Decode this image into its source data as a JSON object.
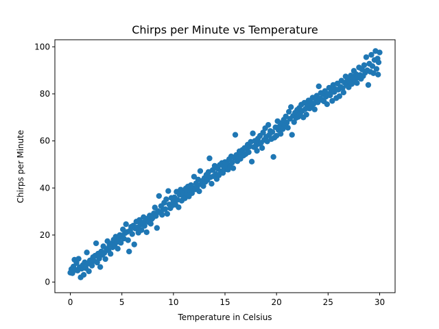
{
  "chart_data": {
    "type": "scatter",
    "title": "Chirps per Minute vs Temperature",
    "xlabel": "Temperature in Celsius",
    "ylabel": "Chirps per Minute",
    "xlim": [
      -1.5,
      31.5
    ],
    "ylim": [
      -4.5,
      103.0
    ],
    "xticks": [
      0,
      5,
      10,
      15,
      20,
      25,
      30
    ],
    "yticks": [
      0,
      20,
      40,
      60,
      80,
      100
    ],
    "grid": false,
    "color": "#1f77b4",
    "series": [
      {
        "points": [
          [
            0.0,
            4.0
          ],
          [
            0.1,
            5.5
          ],
          [
            0.2,
            3.8
          ],
          [
            0.3,
            6.6
          ],
          [
            0.4,
            9.5
          ],
          [
            0.5,
            5.2
          ],
          [
            0.6,
            8.1
          ],
          [
            0.7,
            4.9
          ],
          [
            0.8,
            9.9
          ],
          [
            0.9,
            6.3
          ],
          [
            1.0,
            2.0
          ],
          [
            1.1,
            5.7
          ],
          [
            1.2,
            7.2
          ],
          [
            1.3,
            3.1
          ],
          [
            1.4,
            8.4
          ],
          [
            1.5,
            5.9
          ],
          [
            1.6,
            12.6
          ],
          [
            1.7,
            7.8
          ],
          [
            1.8,
            4.6
          ],
          [
            1.9,
            9.2
          ],
          [
            2.0,
            8.8
          ],
          [
            2.1,
            7.0
          ],
          [
            2.2,
            10.6
          ],
          [
            2.3,
            9.0
          ],
          [
            2.4,
            11.2
          ],
          [
            2.5,
            16.5
          ],
          [
            2.6,
            8.3
          ],
          [
            2.7,
            12.1
          ],
          [
            2.8,
            10.0
          ],
          [
            2.9,
            6.4
          ],
          [
            3.0,
            13.0
          ],
          [
            3.1,
            11.6
          ],
          [
            3.2,
            15.2
          ],
          [
            3.3,
            12.4
          ],
          [
            3.4,
            9.8
          ],
          [
            3.5,
            14.1
          ],
          [
            3.6,
            17.4
          ],
          [
            3.7,
            13.5
          ],
          [
            3.8,
            15.8
          ],
          [
            3.9,
            12.0
          ],
          [
            4.0,
            16.4
          ],
          [
            4.1,
            14.8
          ],
          [
            4.2,
            18.0
          ],
          [
            4.3,
            15.4
          ],
          [
            4.4,
            19.3
          ],
          [
            4.5,
            17.0
          ],
          [
            4.6,
            14.2
          ],
          [
            4.7,
            18.6
          ],
          [
            4.8,
            20.0
          ],
          [
            4.9,
            16.7
          ],
          [
            5.0,
            19.8
          ],
          [
            5.1,
            22.4
          ],
          [
            5.2,
            18.5
          ],
          [
            5.3,
            20.8
          ],
          [
            5.4,
            24.6
          ],
          [
            5.5,
            21.3
          ],
          [
            5.6,
            17.8
          ],
          [
            5.7,
            13.0
          ],
          [
            5.8,
            21.9
          ],
          [
            5.9,
            23.5
          ],
          [
            6.0,
            20.4
          ],
          [
            6.1,
            24.0
          ],
          [
            6.2,
            16.0
          ],
          [
            6.3,
            22.8
          ],
          [
            6.4,
            25.7
          ],
          [
            6.5,
            23.2
          ],
          [
            6.6,
            21.0
          ],
          [
            6.7,
            26.4
          ],
          [
            6.8,
            24.4
          ],
          [
            6.9,
            22.1
          ],
          [
            7.0,
            25.2
          ],
          [
            7.1,
            27.6
          ],
          [
            7.2,
            23.9
          ],
          [
            7.3,
            26.0
          ],
          [
            7.4,
            21.2
          ],
          [
            7.5,
            27.0
          ],
          [
            7.6,
            25.5
          ],
          [
            7.7,
            28.3
          ],
          [
            7.8,
            24.8
          ],
          [
            7.9,
            26.8
          ],
          [
            8.0,
            27.4
          ],
          [
            8.1,
            29.2
          ],
          [
            8.2,
            31.7
          ],
          [
            8.3,
            28.1
          ],
          [
            8.4,
            23.0
          ],
          [
            8.5,
            30.2
          ],
          [
            8.6,
            36.6
          ],
          [
            8.7,
            29.6
          ],
          [
            8.8,
            32.3
          ],
          [
            8.9,
            28.6
          ],
          [
            9.0,
            30.8
          ],
          [
            9.1,
            33.7
          ],
          [
            9.2,
            31.0
          ],
          [
            9.3,
            35.2
          ],
          [
            9.4,
            29.0
          ],
          [
            9.5,
            38.7
          ],
          [
            9.6,
            33.0
          ],
          [
            9.7,
            31.4
          ],
          [
            9.8,
            35.8
          ],
          [
            9.9,
            32.6
          ],
          [
            10.0,
            34.2
          ],
          [
            10.1,
            36.0
          ],
          [
            10.2,
            32.9
          ],
          [
            10.3,
            38.4
          ],
          [
            10.4,
            35.0
          ],
          [
            10.5,
            31.8
          ],
          [
            10.6,
            37.2
          ],
          [
            10.7,
            39.3
          ],
          [
            10.8,
            34.6
          ],
          [
            10.9,
            36.8
          ],
          [
            11.0,
            38.0
          ],
          [
            11.1,
            35.6
          ],
          [
            11.2,
            39.8
          ],
          [
            11.3,
            37.6
          ],
          [
            11.4,
            40.6
          ],
          [
            11.5,
            36.4
          ],
          [
            11.6,
            38.9
          ],
          [
            11.7,
            41.2
          ],
          [
            11.8,
            37.8
          ],
          [
            11.9,
            40.0
          ],
          [
            12.0,
            44.8
          ],
          [
            12.1,
            39.4
          ],
          [
            12.2,
            42.0
          ],
          [
            12.3,
            40.4
          ],
          [
            12.4,
            43.6
          ],
          [
            12.5,
            38.6
          ],
          [
            12.6,
            47.2
          ],
          [
            12.7,
            41.6
          ],
          [
            12.8,
            43.0
          ],
          [
            12.9,
            40.8
          ],
          [
            13.0,
            44.2
          ],
          [
            13.1,
            42.6
          ],
          [
            13.2,
            45.6
          ],
          [
            13.3,
            43.4
          ],
          [
            13.4,
            46.8
          ],
          [
            13.5,
            52.6
          ],
          [
            13.6,
            44.6
          ],
          [
            13.7,
            41.8
          ],
          [
            13.8,
            47.6
          ],
          [
            13.9,
            45.0
          ],
          [
            14.0,
            49.4
          ],
          [
            14.1,
            46.0
          ],
          [
            14.2,
            43.8
          ],
          [
            14.3,
            48.2
          ],
          [
            14.4,
            45.4
          ],
          [
            14.5,
            49.8
          ],
          [
            14.6,
            47.0
          ],
          [
            14.7,
            50.6
          ],
          [
            14.8,
            46.4
          ],
          [
            14.9,
            48.8
          ],
          [
            15.0,
            51.0
          ],
          [
            15.1,
            48.0
          ],
          [
            15.2,
            50.2
          ],
          [
            15.3,
            47.8
          ],
          [
            15.4,
            52.2
          ],
          [
            15.5,
            49.2
          ],
          [
            15.6,
            53.4
          ],
          [
            15.7,
            50.8
          ],
          [
            15.8,
            48.4
          ],
          [
            15.9,
            52.8
          ],
          [
            16.0,
            62.6
          ],
          [
            16.1,
            54.0
          ],
          [
            16.2,
            51.4
          ],
          [
            16.3,
            53.0
          ],
          [
            16.4,
            55.6
          ],
          [
            16.5,
            52.4
          ],
          [
            16.6,
            54.6
          ],
          [
            16.7,
            56.2
          ],
          [
            16.8,
            53.8
          ],
          [
            16.9,
            57.0
          ],
          [
            17.0,
            54.4
          ],
          [
            17.1,
            56.6
          ],
          [
            17.2,
            58.4
          ],
          [
            17.3,
            55.2
          ],
          [
            17.4,
            57.6
          ],
          [
            17.5,
            59.6
          ],
          [
            17.6,
            51.2
          ],
          [
            17.7,
            63.2
          ],
          [
            17.8,
            57.4
          ],
          [
            17.9,
            60.0
          ],
          [
            18.0,
            58.0
          ],
          [
            18.1,
            55.8
          ],
          [
            18.2,
            61.0
          ],
          [
            18.3,
            58.8
          ],
          [
            18.4,
            62.2
          ],
          [
            18.5,
            59.2
          ],
          [
            18.6,
            57.0
          ],
          [
            18.7,
            63.6
          ],
          [
            18.8,
            60.4
          ],
          [
            18.9,
            65.4
          ],
          [
            19.0,
            61.8
          ],
          [
            19.1,
            59.8
          ],
          [
            19.2,
            66.8
          ],
          [
            19.3,
            62.6
          ],
          [
            19.4,
            64.2
          ],
          [
            19.5,
            60.8
          ],
          [
            19.6,
            63.8
          ],
          [
            19.7,
            53.2
          ],
          [
            19.8,
            61.4
          ],
          [
            19.9,
            65.8
          ],
          [
            20.0,
            62.2
          ],
          [
            20.1,
            68.4
          ],
          [
            20.2,
            64.6
          ],
          [
            20.3,
            66.2
          ],
          [
            20.4,
            63.0
          ],
          [
            20.5,
            67.6
          ],
          [
            20.6,
            65.0
          ],
          [
            20.7,
            69.0
          ],
          [
            20.8,
            66.6
          ],
          [
            20.9,
            70.4
          ],
          [
            21.0,
            67.8
          ],
          [
            21.1,
            65.6
          ],
          [
            21.2,
            72.4
          ],
          [
            21.3,
            69.4
          ],
          [
            21.4,
            74.4
          ],
          [
            21.5,
            62.6
          ],
          [
            21.6,
            70.6
          ],
          [
            21.7,
            68.0
          ],
          [
            21.8,
            72.0
          ],
          [
            21.9,
            69.8
          ],
          [
            22.0,
            73.2
          ],
          [
            22.1,
            70.2
          ],
          [
            22.2,
            74.0
          ],
          [
            22.3,
            71.6
          ],
          [
            22.4,
            75.4
          ],
          [
            22.5,
            72.8
          ],
          [
            22.6,
            70.0
          ],
          [
            22.7,
            76.2
          ],
          [
            22.8,
            73.6
          ],
          [
            22.9,
            71.2
          ],
          [
            23.0,
            75.0
          ],
          [
            23.1,
            77.2
          ],
          [
            23.2,
            73.8
          ],
          [
            23.3,
            76.6
          ],
          [
            23.4,
            74.8
          ],
          [
            23.5,
            78.4
          ],
          [
            23.6,
            75.8
          ],
          [
            23.7,
            73.4
          ],
          [
            23.8,
            77.8
          ],
          [
            23.9,
            79.2
          ],
          [
            24.0,
            76.4
          ],
          [
            24.1,
            83.2
          ],
          [
            24.2,
            78.0
          ],
          [
            24.3,
            80.4
          ],
          [
            24.4,
            77.4
          ],
          [
            24.5,
            79.8
          ],
          [
            24.6,
            76.8
          ],
          [
            24.7,
            81.2
          ],
          [
            24.8,
            78.8
          ],
          [
            24.9,
            75.6
          ],
          [
            25.0,
            80.0
          ],
          [
            25.1,
            82.6
          ],
          [
            25.2,
            79.4
          ],
          [
            25.3,
            81.6
          ],
          [
            25.4,
            77.0
          ],
          [
            25.5,
            83.8
          ],
          [
            25.6,
            80.8
          ],
          [
            25.7,
            82.0
          ],
          [
            25.8,
            78.2
          ],
          [
            25.9,
            84.4
          ],
          [
            26.0,
            81.8
          ],
          [
            26.1,
            79.0
          ],
          [
            26.2,
            83.0
          ],
          [
            26.3,
            85.6
          ],
          [
            26.4,
            82.4
          ],
          [
            26.5,
            80.6
          ],
          [
            26.6,
            84.8
          ],
          [
            26.7,
            87.4
          ],
          [
            26.8,
            83.6
          ],
          [
            26.9,
            86.0
          ],
          [
            27.0,
            82.8
          ],
          [
            27.1,
            85.2
          ],
          [
            27.2,
            87.8
          ],
          [
            27.3,
            84.2
          ],
          [
            27.4,
            86.6
          ],
          [
            27.5,
            89.8
          ],
          [
            27.6,
            85.8
          ],
          [
            27.7,
            88.4
          ],
          [
            27.8,
            84.6
          ],
          [
            27.9,
            87.0
          ],
          [
            28.0,
            91.2
          ],
          [
            28.1,
            88.0
          ],
          [
            28.2,
            86.4
          ],
          [
            28.3,
            90.4
          ],
          [
            28.4,
            87.6
          ],
          [
            28.5,
            92.2
          ],
          [
            28.6,
            89.0
          ],
          [
            28.7,
            95.6
          ],
          [
            28.8,
            90.0
          ],
          [
            28.9,
            83.8
          ],
          [
            29.0,
            92.8
          ],
          [
            29.1,
            89.4
          ],
          [
            29.2,
            96.6
          ],
          [
            29.3,
            91.8
          ],
          [
            29.4,
            88.8
          ],
          [
            29.5,
            94.4
          ],
          [
            29.6,
            98.2
          ],
          [
            29.7,
            90.6
          ],
          [
            29.8,
            95.0
          ],
          [
            29.9,
            93.4
          ],
          [
            30.0,
            97.6
          ],
          [
            29.85,
            88.2
          ]
        ]
      }
    ]
  }
}
